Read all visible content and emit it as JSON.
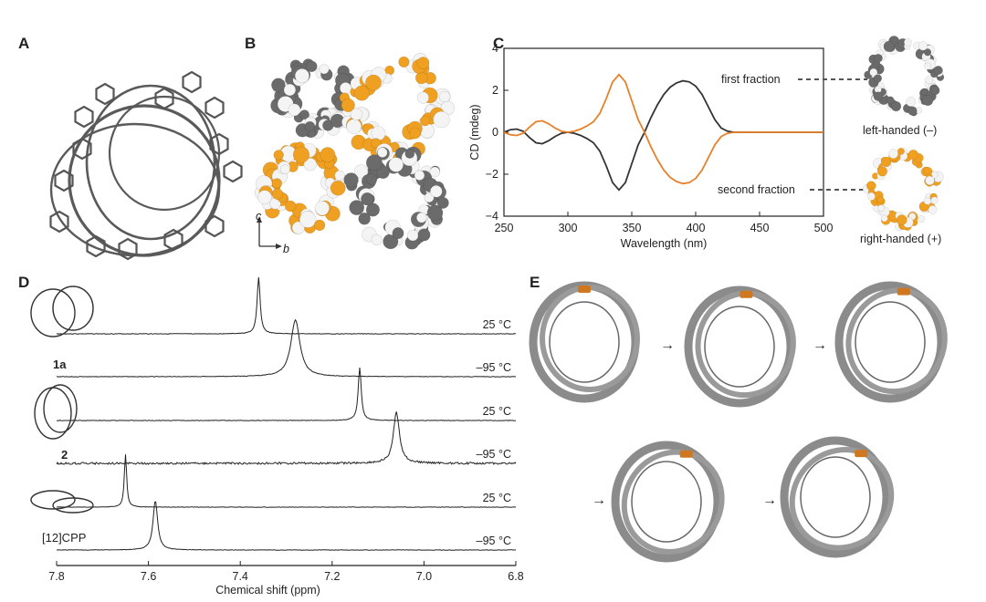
{
  "panels": {
    "a": "A",
    "b": "B",
    "c": "C",
    "d": "D",
    "e": "E"
  },
  "panel_b": {
    "axis_up": "c",
    "axis_right": "b"
  },
  "panel_c_side": {
    "left_label": "left-handed (–)",
    "right_label": "right-handed (+)",
    "colors": {
      "gray": "#6b6b6b",
      "orange": "#f0a020"
    }
  },
  "panel_d_labels": {
    "c1": "1a",
    "c2": "2",
    "c3": "[12]CPP"
  },
  "panel_e": {
    "arrow": "→"
  },
  "chart_data": [
    {
      "type": "line",
      "panel": "C",
      "xlabel": "Wavelength (nm)",
      "ylabel": "CD (mdeg)",
      "xlim": [
        250,
        500
      ],
      "ylim": [
        -4,
        4
      ],
      "xticks": [
        250,
        300,
        350,
        400,
        450,
        500
      ],
      "yticks": [
        -4,
        -2,
        0,
        2,
        4
      ],
      "series": [
        {
          "name": "first fraction",
          "color": "#333333",
          "x": [
            250,
            255,
            260,
            265,
            270,
            275,
            280,
            285,
            290,
            295,
            300,
            305,
            310,
            315,
            320,
            325,
            330,
            335,
            340,
            345,
            350,
            355,
            360,
            365,
            370,
            375,
            380,
            385,
            390,
            395,
            400,
            405,
            410,
            415,
            420,
            425,
            430,
            440,
            450,
            460,
            470,
            480,
            490,
            500
          ],
          "y": [
            0,
            0.12,
            0.15,
            0.05,
            -0.25,
            -0.5,
            -0.55,
            -0.4,
            -0.2,
            -0.05,
            0,
            -0.05,
            -0.15,
            -0.3,
            -0.5,
            -0.9,
            -1.6,
            -2.4,
            -2.75,
            -2.4,
            -1.5,
            -0.6,
            0,
            0.7,
            1.3,
            1.8,
            2.15,
            2.35,
            2.45,
            2.4,
            2.2,
            1.8,
            1.2,
            0.6,
            0.2,
            0.05,
            0,
            0,
            0,
            0,
            0,
            0,
            0,
            0
          ]
        },
        {
          "name": "second fraction",
          "color": "#e8802a",
          "x": [
            250,
            255,
            260,
            265,
            270,
            275,
            280,
            285,
            290,
            295,
            300,
            305,
            310,
            315,
            320,
            325,
            330,
            335,
            340,
            345,
            350,
            355,
            360,
            365,
            370,
            375,
            380,
            385,
            390,
            395,
            400,
            405,
            410,
            415,
            420,
            425,
            430,
            440,
            450,
            460,
            470,
            480,
            490,
            500
          ],
          "y": [
            0,
            -0.12,
            -0.15,
            -0.05,
            0.25,
            0.5,
            0.55,
            0.4,
            0.2,
            0.05,
            0,
            0.05,
            0.15,
            0.3,
            0.5,
            0.9,
            1.6,
            2.4,
            2.75,
            2.4,
            1.5,
            0.6,
            0,
            -0.7,
            -1.3,
            -1.8,
            -2.15,
            -2.35,
            -2.45,
            -2.4,
            -2.2,
            -1.8,
            -1.2,
            -0.6,
            -0.2,
            -0.05,
            0,
            0,
            0,
            0,
            0,
            0,
            0,
            0
          ]
        }
      ]
    },
    {
      "type": "line",
      "panel": "D",
      "xlabel": "Chemical shift (ppm)",
      "xlim": [
        7.8,
        6.8
      ],
      "reversed_x": true,
      "xticks": [
        7.8,
        7.6,
        7.4,
        7.2,
        7.0,
        6.8
      ],
      "xtick_labels": [
        "7.8",
        "7.6",
        "7.4",
        "7.2",
        "7.0",
        "6.8"
      ],
      "series": [
        {
          "name": "25 °C",
          "compound": "1a",
          "peak": 7.36,
          "width": 0.004,
          "height": 62,
          "noise": 0.6
        },
        {
          "name": "–95 °C",
          "compound": "1a",
          "peak": 7.28,
          "width": 0.012,
          "height": 62,
          "noise": 0.6
        },
        {
          "name": "25 °C",
          "compound": "2",
          "peak": 7.14,
          "width": 0.004,
          "height": 58,
          "noise": 0.6
        },
        {
          "name": "–95 °C",
          "compound": "2",
          "peak": 7.06,
          "width": 0.008,
          "height": 56,
          "noise": 2.2
        },
        {
          "name": "25 °C",
          "compound": "[12]CPP",
          "peak": 7.65,
          "width": 0.003,
          "height": 58,
          "noise": 0.5
        },
        {
          "name": "–95 °C",
          "compound": "[12]CPP",
          "peak": 7.585,
          "width": 0.006,
          "height": 54,
          "noise": 0.5
        }
      ]
    }
  ]
}
